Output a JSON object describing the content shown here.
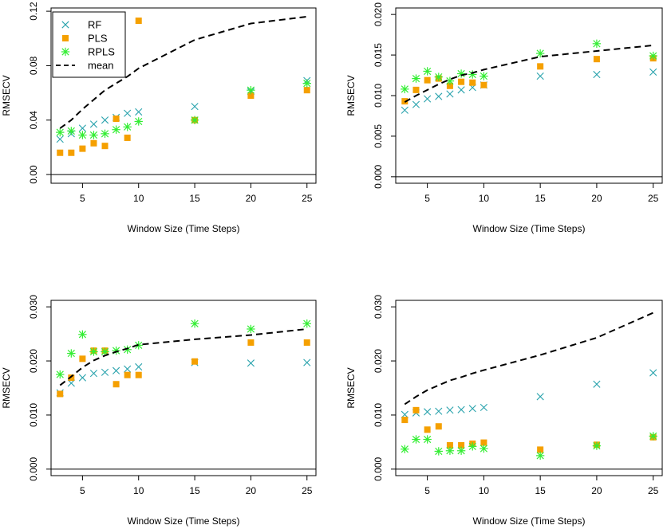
{
  "colors": {
    "RF": "#2aa3ad",
    "PLS": "#f5a000",
    "RPLS": "#33ee33",
    "mean": "#000000",
    "axis": "#000000"
  },
  "chart_data": [
    {
      "type": "scatter",
      "panel": "top-left",
      "xlabel": "Window Size (Time Steps)",
      "ylabel": "RMSECV",
      "xlim": [
        2.2,
        25.8
      ],
      "ylim": [
        -0.0064,
        0.1224
      ],
      "xticks": [
        5,
        10,
        15,
        20,
        25
      ],
      "yticks": [
        0.0,
        0.04,
        0.08,
        0.12
      ],
      "ytick_labels": [
        "0.00",
        "0.04",
        "0.08",
        "0.12"
      ],
      "zero_line": true,
      "legend": {
        "placement": "top-left",
        "entries": [
          "RF",
          "PLS",
          "RPLS",
          "mean"
        ]
      },
      "x": [
        3,
        4,
        5,
        6,
        7,
        8,
        9,
        10,
        15,
        20,
        25
      ],
      "series": [
        {
          "name": "RF",
          "marker": "x",
          "values": [
            0.026,
            0.03,
            0.034,
            0.037,
            0.04,
            0.042,
            0.045,
            0.046,
            0.05,
            0.061,
            0.069
          ]
        },
        {
          "name": "PLS",
          "marker": "square",
          "values": [
            0.016,
            0.016,
            0.019,
            0.023,
            0.021,
            0.041,
            0.027,
            0.113,
            0.04,
            0.058,
            0.062
          ]
        },
        {
          "name": "RPLS",
          "marker": "asterisk",
          "values": [
            0.031,
            0.032,
            0.029,
            0.029,
            0.03,
            0.033,
            0.035,
            0.039,
            0.04,
            0.062,
            0.067
          ]
        },
        {
          "name": "mean",
          "marker": "dashed-line",
          "values": [
            0.034,
            0.04,
            0.048,
            0.055,
            0.062,
            0.067,
            0.072,
            0.078,
            0.099,
            0.111,
            0.116
          ]
        }
      ]
    },
    {
      "type": "scatter",
      "panel": "top-right",
      "xlabel": "Window Size (Time Steps)",
      "ylabel": "RMSECV",
      "xlim": [
        2.2,
        25.8
      ],
      "ylim": [
        -0.0008,
        0.0208
      ],
      "xticks": [
        5,
        10,
        15,
        20,
        25
      ],
      "yticks": [
        0.0,
        0.005,
        0.01,
        0.015,
        0.02
      ],
      "ytick_labels": [
        "0.000",
        "0.005",
        "0.010",
        "0.015",
        "0.020"
      ],
      "zero_line": true,
      "x": [
        3,
        4,
        5,
        6,
        7,
        8,
        9,
        10,
        15,
        20,
        25
      ],
      "series": [
        {
          "name": "RF",
          "marker": "x",
          "values": [
            0.0082,
            0.0089,
            0.0096,
            0.0099,
            0.0102,
            0.0107,
            0.011,
            0.0113,
            0.0124,
            0.0126,
            0.0129
          ]
        },
        {
          "name": "PLS",
          "marker": "square",
          "values": [
            0.0093,
            0.0107,
            0.0119,
            0.0121,
            0.0112,
            0.0117,
            0.0116,
            0.0113,
            0.0136,
            0.0145,
            0.0146
          ]
        },
        {
          "name": "RPLS",
          "marker": "asterisk",
          "values": [
            0.0108,
            0.0121,
            0.013,
            0.0123,
            0.0118,
            0.0127,
            0.0126,
            0.0124,
            0.0152,
            0.0164,
            0.0149
          ]
        },
        {
          "name": "mean",
          "marker": "dashed-line",
          "values": [
            0.0092,
            0.01,
            0.0107,
            0.0114,
            0.012,
            0.0125,
            0.0128,
            0.0132,
            0.0148,
            0.0155,
            0.0162
          ]
        }
      ]
    },
    {
      "type": "scatter",
      "panel": "bottom-left",
      "xlabel": "Window Size (Time Steps)",
      "ylabel": "RMSECV",
      "xlim": [
        2.2,
        25.8
      ],
      "ylim": [
        -0.0012,
        0.0312
      ],
      "xticks": [
        5,
        10,
        15,
        20,
        25
      ],
      "yticks": [
        0.0,
        0.01,
        0.02,
        0.03
      ],
      "ytick_labels": [
        "0.000",
        "0.010",
        "0.020",
        "0.030"
      ],
      "zero_line": true,
      "x": [
        3,
        4,
        5,
        6,
        7,
        8,
        9,
        10,
        15,
        20,
        25
      ],
      "series": [
        {
          "name": "RF",
          "marker": "x",
          "values": [
            0.0141,
            0.0159,
            0.0169,
            0.0177,
            0.0179,
            0.0182,
            0.0185,
            0.0189,
            0.0197,
            0.0196,
            0.0197
          ]
        },
        {
          "name": "PLS",
          "marker": "square",
          "values": [
            0.0139,
            0.0169,
            0.0204,
            0.0219,
            0.0219,
            0.0157,
            0.0174,
            0.0174,
            0.0199,
            0.0234,
            0.0234
          ]
        },
        {
          "name": "RPLS",
          "marker": "asterisk",
          "values": [
            0.0175,
            0.0214,
            0.0249,
            0.0217,
            0.0217,
            0.0219,
            0.0221,
            0.0229,
            0.0269,
            0.0259,
            0.0269
          ]
        },
        {
          "name": "mean",
          "marker": "dashed-line",
          "values": [
            0.0155,
            0.0171,
            0.0188,
            0.0201,
            0.021,
            0.0217,
            0.0223,
            0.023,
            0.024,
            0.0248,
            0.0259
          ]
        }
      ]
    },
    {
      "type": "scatter",
      "panel": "bottom-right",
      "xlabel": "Window Size (Time Steps)",
      "ylabel": "RMSECV",
      "xlim": [
        2.2,
        25.8
      ],
      "ylim": [
        -0.0012,
        0.0312
      ],
      "xticks": [
        5,
        10,
        15,
        20,
        25
      ],
      "yticks": [
        0.0,
        0.01,
        0.02,
        0.03
      ],
      "ytick_labels": [
        "0.000",
        "0.010",
        "0.020",
        "0.030"
      ],
      "zero_line": true,
      "x": [
        3,
        4,
        5,
        6,
        7,
        8,
        9,
        10,
        15,
        20,
        25
      ],
      "series": [
        {
          "name": "RF",
          "marker": "x",
          "values": [
            0.0101,
            0.0104,
            0.0106,
            0.0107,
            0.0109,
            0.011,
            0.0112,
            0.0114,
            0.0134,
            0.0157,
            0.0178
          ]
        },
        {
          "name": "PLS",
          "marker": "square",
          "values": [
            0.0091,
            0.0109,
            0.0073,
            0.0079,
            0.0044,
            0.0044,
            0.0047,
            0.0049,
            0.0036,
            0.0045,
            0.0059
          ]
        },
        {
          "name": "RPLS",
          "marker": "asterisk",
          "values": [
            0.0037,
            0.0055,
            0.0055,
            0.0033,
            0.0034,
            0.0034,
            0.0042,
            0.0038,
            0.0025,
            0.0043,
            0.0061
          ]
        },
        {
          "name": "mean",
          "marker": "dashed-line",
          "values": [
            0.012,
            0.0134,
            0.0146,
            0.0155,
            0.0164,
            0.017,
            0.0177,
            0.0183,
            0.0211,
            0.0243,
            0.0289
          ]
        }
      ]
    }
  ]
}
